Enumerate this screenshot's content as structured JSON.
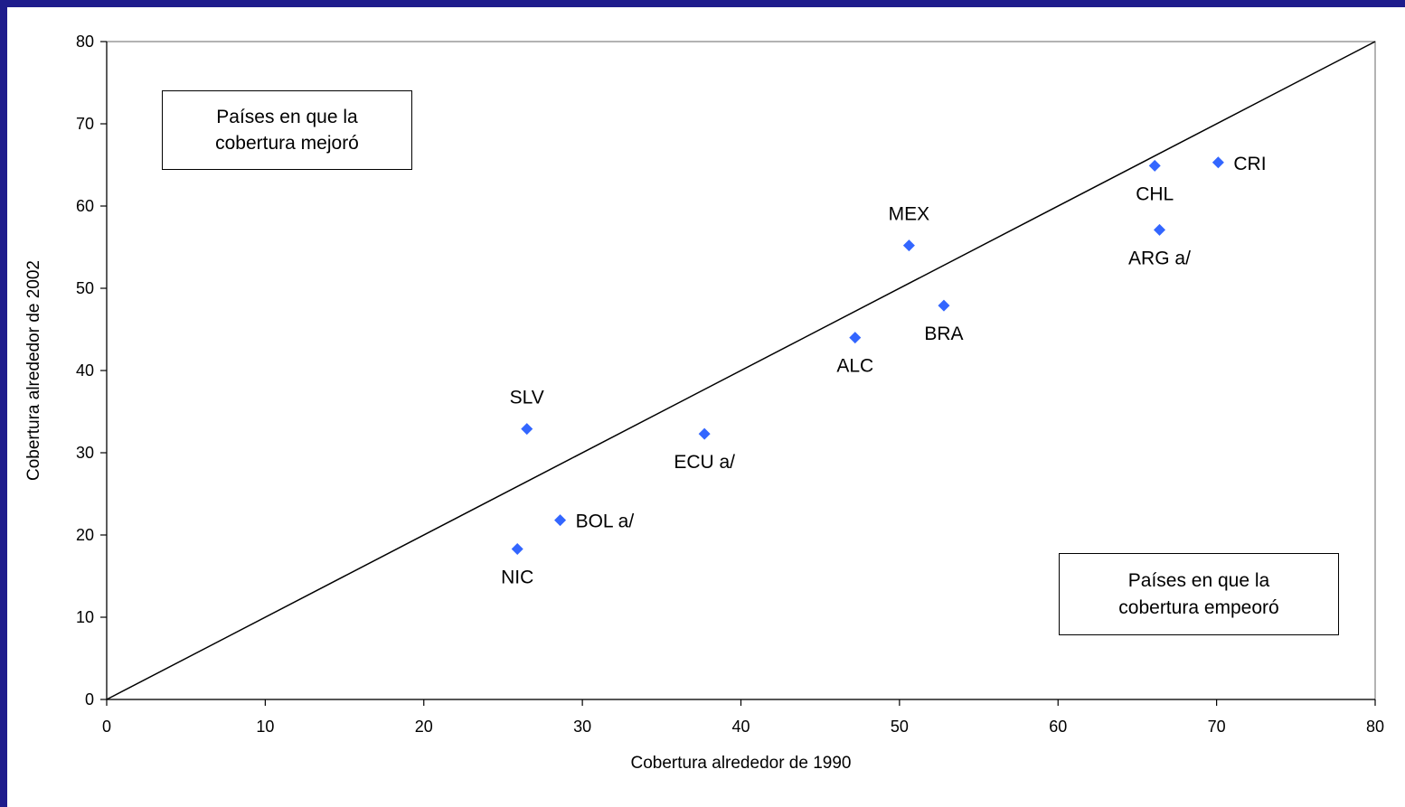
{
  "annotations": {
    "improved": [
      "Países en que la",
      "cobertura mejoró"
    ],
    "worsened": [
      "Países en que la",
      "cobertura empeoró"
    ]
  },
  "chart_data": {
    "type": "scatter",
    "xlabel": "Cobertura alrededor de 1990",
    "ylabel": "Cobertura alrededor de 2002",
    "xlim": [
      0,
      80
    ],
    "ylim": [
      0,
      80
    ],
    "xticks": [
      0,
      10,
      20,
      30,
      40,
      50,
      60,
      70,
      80
    ],
    "yticks": [
      0,
      10,
      20,
      30,
      40,
      50,
      60,
      70,
      80
    ],
    "grid": false,
    "reference_line": {
      "from": [
        0,
        0
      ],
      "to": [
        80,
        80
      ]
    },
    "marker_color": "#3366ff",
    "points": [
      {
        "label": "SLV",
        "x": 26.5,
        "y": 32.9,
        "label_pos": "above"
      },
      {
        "label": "NIC",
        "x": 25.9,
        "y": 18.3,
        "label_pos": "below"
      },
      {
        "label": "BOL  a/",
        "x": 28.6,
        "y": 21.8,
        "label_pos": "right"
      },
      {
        "label": "ECU  a/",
        "x": 37.7,
        "y": 32.3,
        "label_pos": "below"
      },
      {
        "label": "ALC",
        "x": 47.2,
        "y": 44.0,
        "label_pos": "below"
      },
      {
        "label": "MEX",
        "x": 50.6,
        "y": 55.2,
        "label_pos": "above"
      },
      {
        "label": "BRA",
        "x": 52.8,
        "y": 47.9,
        "label_pos": "below"
      },
      {
        "label": "CHL",
        "x": 66.1,
        "y": 64.9,
        "label_pos": "below"
      },
      {
        "label": "ARG  a/",
        "x": 66.4,
        "y": 57.1,
        "label_pos": "below"
      },
      {
        "label": "CRI",
        "x": 70.1,
        "y": 65.3,
        "label_pos": "right"
      }
    ]
  }
}
